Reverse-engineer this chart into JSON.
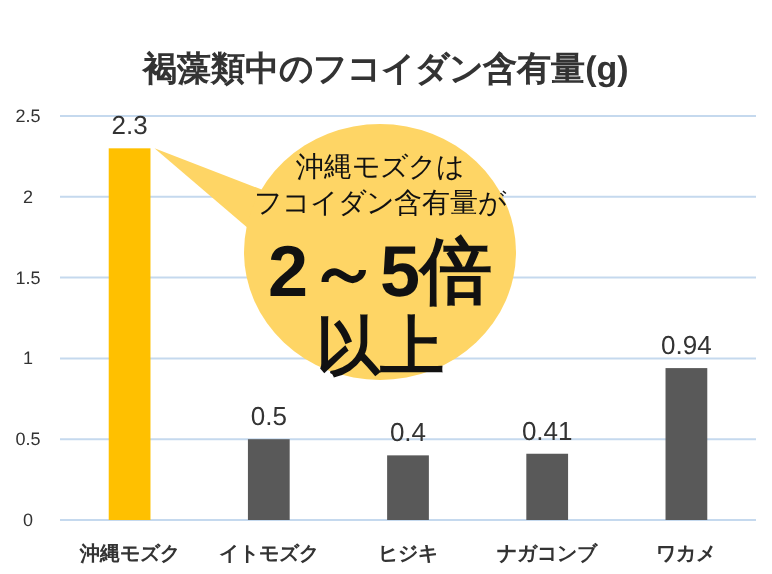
{
  "chart_data": {
    "type": "bar",
    "title": "褐藻類中のフコイダン含有量(g)",
    "categories": [
      "沖縄モズク",
      "イトモズク",
      "ヒジキ",
      "ナガコンブ",
      "ワカメ"
    ],
    "values": [
      2.3,
      0.5,
      0.4,
      0.41,
      0.94
    ],
    "colors": [
      "#ffc000",
      "#595959",
      "#595959",
      "#595959",
      "#595959"
    ],
    "ylim": [
      0,
      2.5
    ],
    "yticks": [
      0,
      0.5,
      1,
      1.5,
      2,
      2.5
    ],
    "grid": "y",
    "data_labels": true,
    "annotations": [
      "沖縄モズクは",
      "フコイダン含有量が",
      "2～5倍",
      "以上"
    ]
  }
}
